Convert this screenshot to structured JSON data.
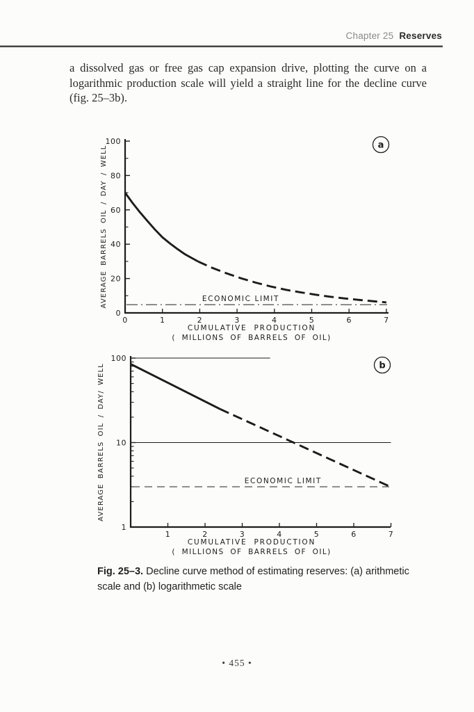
{
  "header": {
    "chapter": "Chapter 25",
    "section": "Reserves"
  },
  "body": {
    "lines": [
      "a dissolved gas or free gas cap expansion drive, plotting the curve on a",
      "logarithmic production scale will yield a straight line for the decline curve",
      "(fig. 25–3b)."
    ]
  },
  "caption": {
    "label": "Fig. 25–3.",
    "text": "Decline curve method of estimating reserves: (a) arithmetic scale and (b) logarithmetic scale"
  },
  "footer": {
    "page_display": "• 455 •"
  },
  "chart_data": [
    {
      "id": "a",
      "type": "line",
      "scale": "linear",
      "badge": "a",
      "xlabel_line1": "CUMULATIVE  PRODUCTION",
      "xlabel_line2": "( MILLIONS  OF  BARRELS  OF OIL)",
      "ylabel": "AVERAGE  BARRELS  OIL / DAY / WELL",
      "xlim": [
        0,
        7
      ],
      "ylim": [
        0,
        100
      ],
      "x_ticks": [
        0,
        1,
        2,
        3,
        4,
        5,
        6,
        7
      ],
      "y_ticks": [
        0,
        20,
        40,
        60,
        80,
        100
      ],
      "y_minor_ticks": [
        10,
        30,
        50,
        70,
        90
      ],
      "grid": "off",
      "series": [
        {
          "name": "decline-curve-observed",
          "style": "solid",
          "points": [
            [
              0,
              70
            ],
            [
              0.2,
              64
            ],
            [
              0.4,
              58.5
            ],
            [
              0.6,
              53.5
            ],
            [
              0.8,
              48.5
            ],
            [
              1,
              44
            ],
            [
              1.2,
              40.5
            ],
            [
              1.4,
              37.2
            ],
            [
              1.6,
              34.2
            ],
            [
              1.8,
              31.8
            ],
            [
              1.95,
              30
            ]
          ]
        },
        {
          "name": "decline-curve-extrapolated",
          "style": "dashed",
          "points": [
            [
              1.95,
              30
            ],
            [
              2.3,
              26.5
            ],
            [
              2.7,
              23.2
            ],
            [
              3.1,
              20.2
            ],
            [
              3.5,
              17.6
            ],
            [
              3.9,
              15.4
            ],
            [
              4.3,
              13.5
            ],
            [
              4.7,
              12
            ],
            [
              5.1,
              10.6
            ],
            [
              5.5,
              9.4
            ],
            [
              5.9,
              8.4
            ],
            [
              6.3,
              7.5
            ],
            [
              6.7,
              6.7
            ],
            [
              7,
              6.1
            ]
          ]
        }
      ],
      "economic_limit": {
        "label": "ECONOMIC  LIMIT",
        "value": 4.8,
        "style": "dash-dot",
        "label_x": 3.1
      }
    },
    {
      "id": "b",
      "type": "line",
      "scale": "log-y",
      "badge": "b",
      "xlabel_line1": "CUMULATIVE  PRODUCTION",
      "xlabel_line2": "( MILLIONS  OF  BARRELS  OF OIL)",
      "ylabel": "AVERAGE  BARRELS  OIL / DAY/ WELL",
      "xlim": [
        0,
        7
      ],
      "ylim": [
        1,
        100
      ],
      "x_ticks": [
        1,
        2,
        3,
        4,
        5,
        6,
        7
      ],
      "y_ticks": [
        1,
        10,
        100
      ],
      "y_minor_ticks": [
        2,
        3,
        4,
        5,
        6,
        7,
        8,
        9,
        20,
        30,
        40,
        50,
        60,
        70,
        80,
        90
      ],
      "gridlines_y": [
        {
          "value": 100,
          "x_extent": [
            0,
            3.75
          ]
        },
        {
          "value": 10,
          "x_extent": [
            0,
            7
          ]
        }
      ],
      "series": [
        {
          "name": "decline-line-observed",
          "style": "solid",
          "points": [
            [
              0,
              85
            ],
            [
              2.4,
              25
            ]
          ]
        },
        {
          "name": "decline-line-extrapolated",
          "style": "dashed",
          "points": [
            [
              2.4,
              25
            ],
            [
              6.95,
              3.05
            ]
          ]
        }
      ],
      "economic_limit": {
        "label": "ECONOMIC  LIMIT",
        "value": 3,
        "style": "dashed",
        "label_x": 4.1
      }
    }
  ]
}
